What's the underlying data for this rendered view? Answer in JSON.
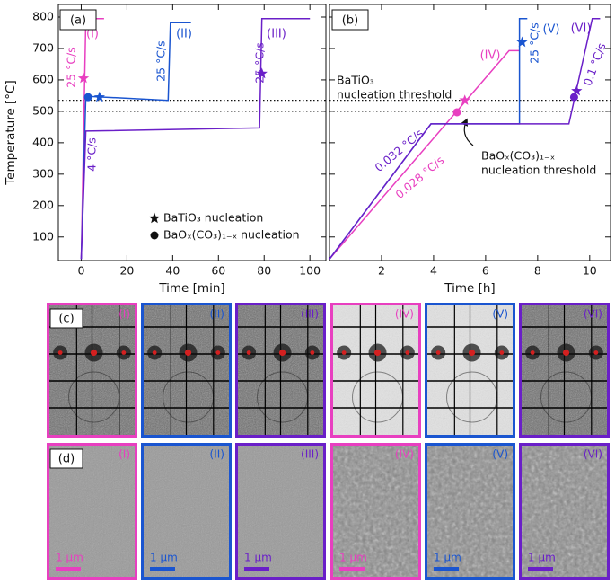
{
  "chart_data": [
    {
      "type": "line",
      "label": "(a)",
      "xlabel": "Time [min]",
      "ylabel": "Temperature [°C]",
      "xlim": [
        -10,
        107
      ],
      "ylim": [
        25,
        840
      ],
      "xticks": [
        0,
        20,
        40,
        60,
        80,
        100
      ],
      "yticks": [
        100,
        200,
        300,
        400,
        500,
        600,
        700,
        800
      ],
      "show_ytick_labels": true,
      "thresholds": [
        535,
        500
      ],
      "series": [
        {
          "name": "(I)",
          "color": "#e83fc0",
          "x": [
            0,
            2,
            10
          ],
          "values": [
            30,
            795,
            795
          ],
          "markers": [
            {
              "shape": "star",
              "x": 1,
              "y": 605
            }
          ]
        },
        {
          "name": "(II)",
          "color": "#1a55d0",
          "x": [
            0,
            2,
            38,
            39,
            48
          ],
          "values": [
            30,
            548,
            535,
            782,
            782
          ],
          "markers": [
            {
              "shape": "circle",
              "x": 3,
              "y": 545
            },
            {
              "shape": "star",
              "x": 8,
              "y": 545
            }
          ]
        },
        {
          "name": "(III)",
          "color": "#6a1fc8",
          "x": [
            0,
            2,
            78,
            79,
            100
          ],
          "values": [
            30,
            437,
            447,
            795,
            795
          ],
          "markers": [
            {
              "shape": "star",
              "x": 79,
              "y": 620
            }
          ]
        }
      ],
      "annotations": [
        {
          "lines": [
            "25 °C/s"
          ],
          "color": "#e83fc0"
        },
        {
          "lines": [
            "25 °C/s"
          ],
          "color": "#1a55d0"
        },
        {
          "lines": [
            "25 °C/s"
          ],
          "color": "#6a1fc8"
        },
        {
          "lines": [
            "4 °C/s"
          ],
          "color": "#6a1fc8"
        }
      ],
      "legend": [
        {
          "shape": "star",
          "label": "BaTiO₃ nucleation"
        },
        {
          "shape": "circle",
          "label": "BaOₓ(CO₃)₁₋ₓ nucleation"
        }
      ]
    },
    {
      "type": "line",
      "label": "(b)",
      "xlabel": "Time [h]",
      "xlim": [
        0,
        10.8
      ],
      "ylim": [
        25,
        840
      ],
      "xticks": [
        2,
        4,
        6,
        8,
        10
      ],
      "yticks": [
        100,
        200,
        300,
        400,
        500,
        600,
        700,
        800
      ],
      "show_ytick_labels": false,
      "thresholds": [
        535,
        500
      ],
      "series": [
        {
          "name": "(IV)",
          "color": "#e83fc0",
          "x": [
            0,
            6.9,
            7.3
          ],
          "values": [
            30,
            693,
            693
          ],
          "markers": [
            {
              "shape": "circle",
              "x": 4.9,
              "y": 497
            },
            {
              "shape": "star",
              "x": 5.2,
              "y": 535
            }
          ]
        },
        {
          "name": "(V)",
          "color": "#1a55d0",
          "x": [
            0,
            3.9,
            7.3,
            7.3,
            7.6
          ],
          "values": [
            30,
            460,
            460,
            795,
            795
          ],
          "markers": [
            {
              "shape": "star",
              "x": 7.4,
              "y": 720
            }
          ]
        },
        {
          "name": "(VI)",
          "color": "#6a1fc8",
          "x": [
            0,
            3.9,
            9.2,
            10.1,
            10.4
          ],
          "values": [
            30,
            460,
            460,
            795,
            795
          ],
          "markers": [
            {
              "shape": "circle",
              "x": 9.4,
              "y": 545
            },
            {
              "shape": "star",
              "x": 9.5,
              "y": 565
            }
          ]
        }
      ],
      "annotations": [
        {
          "lines": [
            "25 °C/s"
          ],
          "color": "#1a55d0"
        },
        {
          "lines": [
            "0.1 °C/s"
          ],
          "color": "#6a1fc8"
        },
        {
          "lines": [
            "0.032 °C/s"
          ],
          "color": "#6a1fc8"
        },
        {
          "lines": [
            "0.028 °C/s"
          ],
          "color": "#e83fc0"
        },
        {
          "lines": [
            "BaTiO₃",
            "nucleation threshold"
          ],
          "color": "#111111"
        },
        {
          "lines": [
            "BaOₓ(CO₃)₁₋ₓ",
            "nucleation threshold"
          ],
          "color": "#111111"
        }
      ]
    }
  ],
  "images": {
    "c": {
      "label": "(c)"
    },
    "d": {
      "label": "(d)",
      "scale": "1 μm"
    }
  }
}
